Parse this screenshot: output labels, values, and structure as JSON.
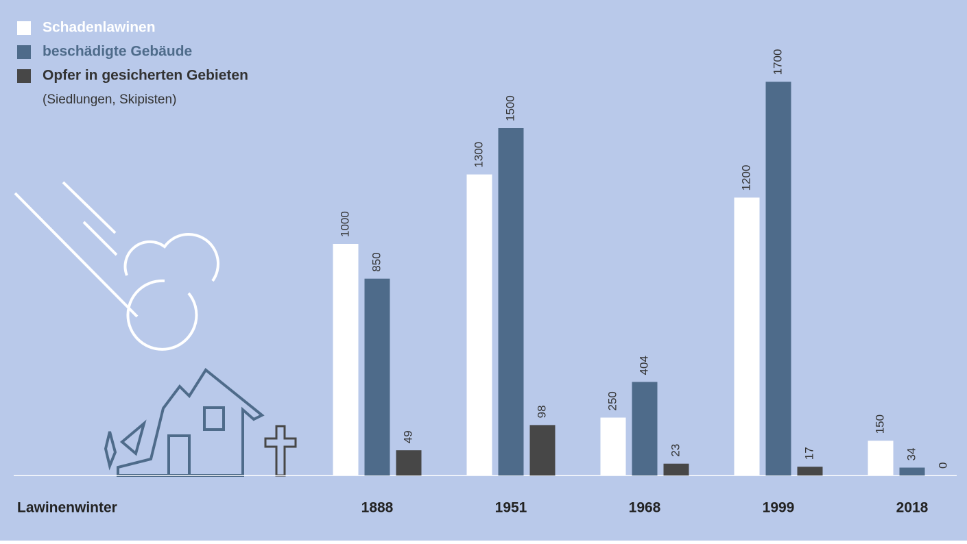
{
  "chart_data": {
    "type": "bar",
    "x_label": "Lawinenwinter",
    "legend_note": "(Siedlungen, Skipisten)",
    "categories": [
      "1888",
      "1951",
      "1968",
      "1999",
      "2018"
    ],
    "series": [
      {
        "name": "Schadenlawinen",
        "color": "#ffffff",
        "values": [
          1000,
          1300,
          250,
          1200,
          150
        ]
      },
      {
        "name": "beschädigte Gebäude",
        "color": "#4e6b8a",
        "values": [
          850,
          1500,
          404,
          1700,
          34
        ]
      },
      {
        "name": "Opfer in gesicherten Gebieten",
        "color": "#474747",
        "axis": "y2",
        "values": [
          49,
          98,
          23,
          17,
          0
        ]
      }
    ],
    "ylim": [
      0,
      2000
    ],
    "y2lim": [
      0,
      900
    ],
    "legend": "upper left"
  }
}
